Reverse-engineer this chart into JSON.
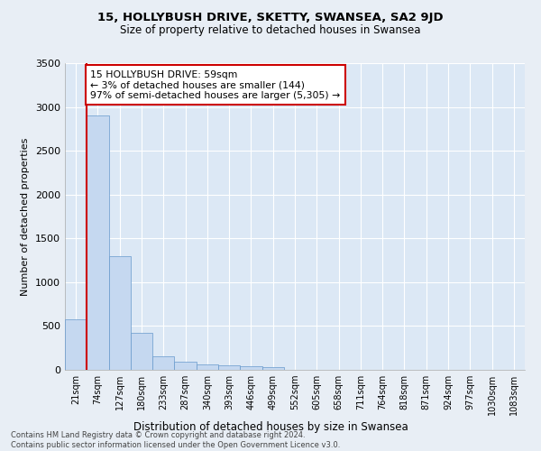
{
  "title": "15, HOLLYBUSH DRIVE, SKETTY, SWANSEA, SA2 9JD",
  "subtitle": "Size of property relative to detached houses in Swansea",
  "xlabel": "Distribution of detached houses by size in Swansea",
  "ylabel": "Number of detached properties",
  "annotation_line1": "15 HOLLYBUSH DRIVE: 59sqm",
  "annotation_line2": "← 3% of detached houses are smaller (144)",
  "annotation_line3": "97% of semi-detached houses are larger (5,305) →",
  "categories": [
    "21sqm",
    "74sqm",
    "127sqm",
    "180sqm",
    "233sqm",
    "287sqm",
    "340sqm",
    "393sqm",
    "446sqm",
    "499sqm",
    "552sqm",
    "605sqm",
    "658sqm",
    "711sqm",
    "764sqm",
    "818sqm",
    "871sqm",
    "924sqm",
    "977sqm",
    "1030sqm",
    "1083sqm"
  ],
  "values": [
    580,
    2900,
    1300,
    420,
    150,
    90,
    60,
    50,
    40,
    35,
    0,
    0,
    0,
    0,
    0,
    0,
    0,
    0,
    0,
    0,
    0
  ],
  "bar_color": "#c5d8f0",
  "bar_edge_color": "#6699cc",
  "annotation_box_color": "#ffffff",
  "annotation_box_edge_color": "#cc0000",
  "prop_line_color": "#cc0000",
  "ylim": [
    0,
    3500
  ],
  "yticks": [
    0,
    500,
    1000,
    1500,
    2000,
    2500,
    3000,
    3500
  ],
  "background_color": "#dce8f5",
  "grid_color": "#ffffff",
  "footer_line1": "Contains HM Land Registry data © Crown copyright and database right 2024.",
  "footer_line2": "Contains public sector information licensed under the Open Government Licence v3.0."
}
